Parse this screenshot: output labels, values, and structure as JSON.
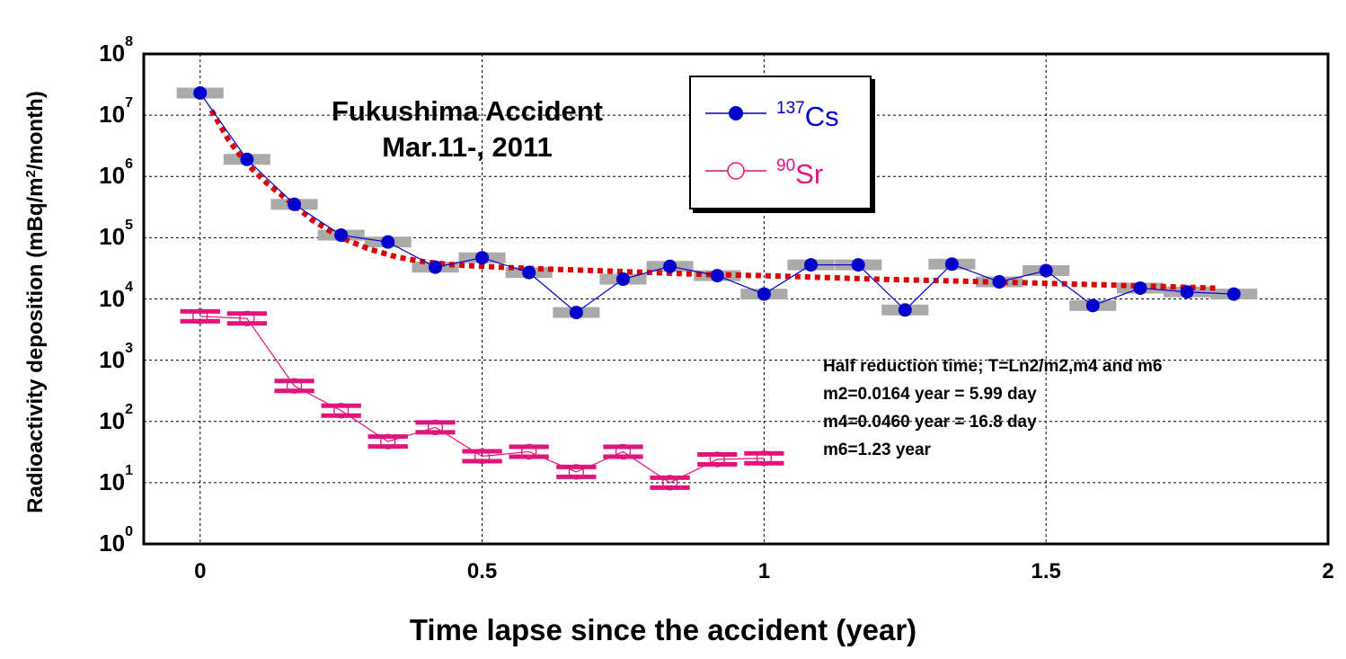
{
  "chart_data": {
    "type": "scatter",
    "title_lines": [
      "Fukushima Accident",
      "Mar.11-, 2011"
    ],
    "xlabel": "Time lapse since the accident (year)",
    "ylabel_parts": [
      "Radioactivity deposition (mBq/m",
      "2",
      "/month)"
    ],
    "xlim": [
      -0.1,
      2
    ],
    "ylim_log10": [
      0,
      8
    ],
    "y_scale": "log",
    "grid": true,
    "legend_position": "top-center",
    "x_ticks": [
      "0",
      "0.5",
      "1",
      "1.5",
      "2"
    ],
    "x_tick_values": [
      0,
      0.5,
      1,
      1.5,
      2
    ],
    "y_ticks_exponent": [
      "0",
      "1",
      "2",
      "3",
      "4",
      "5",
      "6",
      "7",
      "8"
    ],
    "y_tick_base": "10",
    "series": [
      {
        "name_super": "137",
        "name_main": "Cs",
        "color": "#0000cc",
        "marker": "filled-circle",
        "x": [
          0,
          0.083,
          0.167,
          0.25,
          0.333,
          0.417,
          0.5,
          0.583,
          0.667,
          0.75,
          0.833,
          0.917,
          1.0,
          1.083,
          1.167,
          1.25,
          1.333,
          1.417,
          1.5,
          1.583,
          1.667,
          1.75,
          1.833
        ],
        "y": [
          23000000,
          1900000,
          350000,
          110000,
          85000,
          33000,
          47000,
          27000,
          6000,
          21000,
          34000,
          24000,
          12000,
          36000,
          36000,
          6600,
          37000,
          19000,
          29000,
          7800,
          15000,
          13000,
          12000
        ]
      },
      {
        "name_super": "90",
        "name_main": "Sr",
        "color": "#e0147a",
        "marker": "open-circle",
        "x": [
          0,
          0.083,
          0.167,
          0.25,
          0.333,
          0.417,
          0.5,
          0.583,
          0.667,
          0.75,
          0.833,
          0.917,
          1.0
        ],
        "y": [
          5200,
          4800,
          380,
          150,
          47,
          80,
          27,
          32,
          15,
          32,
          10,
          24,
          25
        ]
      },
      {
        "name": "fit",
        "color": "#dd0000",
        "style": "dotted",
        "x": [
          0.02,
          0.05,
          0.08,
          0.12,
          0.16,
          0.2,
          0.25,
          0.3,
          0.35,
          0.4,
          0.45,
          0.5,
          0.6,
          0.7,
          0.8,
          0.9,
          1.0,
          1.1,
          1.2,
          1.3,
          1.4,
          1.5,
          1.6,
          1.7,
          1.8
        ],
        "y": [
          12000000,
          4000000,
          1700000,
          750000,
          380000,
          190000,
          100000,
          65000,
          48000,
          40000,
          36000,
          34000,
          31000,
          29000,
          27000,
          25000,
          24000,
          22500,
          21000,
          20000,
          19000,
          18000,
          17000,
          16000,
          15000
        ]
      }
    ],
    "annotation_lines": [
      "Half reduction time; T=Ln2/m2,m4 and m6",
      "m2=0.0164 year = 5.99 day",
      "m4=0.0460 year = 16.8 day",
      "m6=1.23 year"
    ],
    "colors": {
      "cs": "#0000cc",
      "sr": "#e0147a",
      "fit": "#dd0000",
      "bar": "#aaaaaa"
    }
  }
}
